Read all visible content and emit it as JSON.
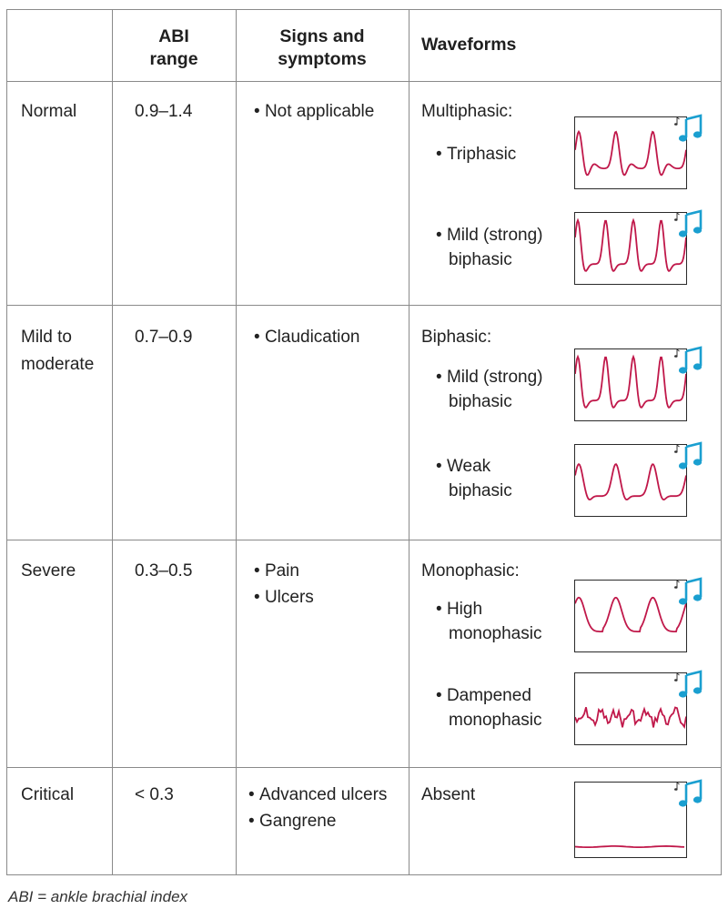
{
  "header": {
    "abi_range": [
      "ABI",
      "range"
    ],
    "signs": [
      "Signs and",
      "symptoms"
    ],
    "waveforms": "Waveforms"
  },
  "rows": [
    {
      "severity": [
        "Normal"
      ],
      "abi": "0.9–1.4",
      "signs": [
        "Not applicable"
      ],
      "waveform_title": "Multiphasic:",
      "waveforms": [
        {
          "label": [
            "Triphasic"
          ],
          "type": "triphasic"
        },
        {
          "label": [
            "Mild (strong)",
            "biphasic"
          ],
          "type": "biphasic-strong"
        }
      ]
    },
    {
      "severity": [
        "Mild to",
        "moderate"
      ],
      "abi": "0.7–0.9",
      "signs": [
        "Claudication"
      ],
      "waveform_title": "Biphasic:",
      "waveforms": [
        {
          "label": [
            "Mild (strong)",
            "biphasic"
          ],
          "type": "biphasic-strong"
        },
        {
          "label": [
            "Weak",
            "biphasic"
          ],
          "type": "biphasic-weak"
        }
      ]
    },
    {
      "severity": [
        "Severe"
      ],
      "abi": "0.3–0.5",
      "signs": [
        "Pain",
        "Ulcers"
      ],
      "waveform_title": "Monophasic:",
      "waveforms": [
        {
          "label": [
            "High",
            "monophasic"
          ],
          "type": "monophasic-high"
        },
        {
          "label": [
            "Dampened",
            "monophasic"
          ],
          "type": "monophasic-dampened"
        }
      ]
    },
    {
      "severity": [
        "Critical"
      ],
      "abi": "< 0.3",
      "signs": [
        "Advanced ulcers",
        "Gangrene"
      ],
      "waveform_title": "Absent",
      "waveforms": [
        {
          "label": [],
          "type": "absent"
        }
      ]
    }
  ],
  "footnote": "ABI = ankle brachial index",
  "colors": {
    "waveform": "#c0184a",
    "note_icon": "#1a9fd0",
    "border": "#8a8a8a"
  },
  "icons": {
    "waveform_box": "music-note-icon"
  }
}
